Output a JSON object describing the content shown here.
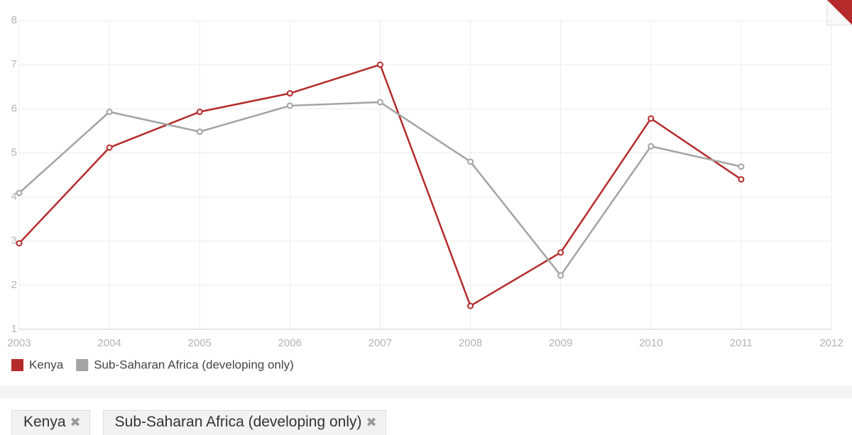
{
  "chart_data": {
    "type": "line",
    "x": [
      2003,
      2004,
      2005,
      2006,
      2007,
      2008,
      2009,
      2010,
      2011
    ],
    "xlim": [
      2003,
      2012
    ],
    "xticks": [
      2003,
      2004,
      2005,
      2006,
      2007,
      2008,
      2009,
      2010,
      2011,
      2012
    ],
    "ylim": [
      1,
      8
    ],
    "yticks": [
      1,
      2,
      3,
      4,
      5,
      6,
      7,
      8
    ],
    "grid": true,
    "series": [
      {
        "name": "Kenya",
        "color": "#b52b2b",
        "values": [
          2.95,
          5.12,
          5.93,
          6.35,
          7.0,
          1.53,
          2.74,
          5.78,
          4.4
        ]
      },
      {
        "name": "Sub-Saharan Africa (developing only)",
        "color": "#a3a3a3",
        "values": [
          4.09,
          5.93,
          5.48,
          6.07,
          6.15,
          4.8,
          2.22,
          5.15,
          4.69
        ]
      }
    ]
  },
  "filters": [
    "Kenya",
    "Sub-Saharan Africa (developing only)"
  ]
}
